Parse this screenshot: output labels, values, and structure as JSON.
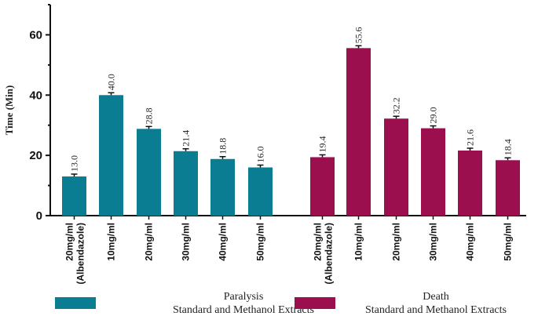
{
  "chart_data": {
    "type": "bar",
    "ylabel": "Time (Min)",
    "ylim": [
      0,
      70
    ],
    "yticks": [
      0,
      20,
      40,
      60
    ],
    "grid": false,
    "legend_position": "bottom",
    "groups": [
      {
        "name": "Paralysis",
        "subtitle": "Standard and Methanol Extracts",
        "color": "#0b7d93",
        "categories": [
          "20mg/ml (Albendazole)",
          "10mg/ml",
          "20mg/ml",
          "30mg/ml",
          "40mg/ml",
          "50mg/ml"
        ],
        "values": [
          13.0,
          40.0,
          28.8,
          21.4,
          18.8,
          16.0
        ],
        "labels": [
          "13.0",
          "40.0",
          "28.8",
          "21.4",
          "18.8",
          "16.0"
        ]
      },
      {
        "name": "Death",
        "subtitle": "Standard and Methanol Extracts",
        "color": "#9b0f4f",
        "categories": [
          "20mg/ml (Albendazole)",
          "10mg/ml",
          "20mg/ml",
          "30mg/ml",
          "40mg/ml",
          "50mg/ml"
        ],
        "values": [
          19.4,
          55.6,
          32.2,
          29.0,
          21.6,
          18.4
        ],
        "labels": [
          "19.4",
          "55.6",
          "32.2",
          "29.0",
          "21.6",
          "18.4"
        ]
      }
    ]
  }
}
